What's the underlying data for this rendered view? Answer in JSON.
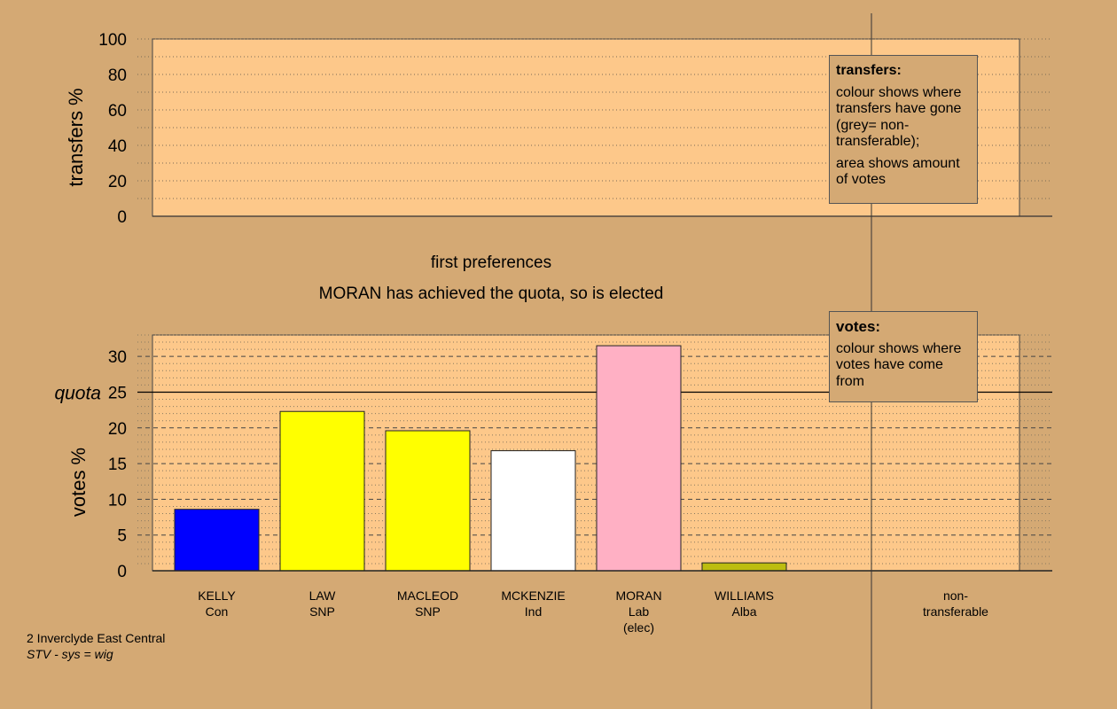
{
  "stage_title": "first preferences",
  "status_message": "MORAN has achieved the quota, so is elected",
  "legends": {
    "transfers": {
      "title": "transfers:",
      "line1": "colour shows where transfers have gone (grey= non-transferable);",
      "line2": "area shows amount of votes"
    },
    "votes": {
      "title": "votes:",
      "line1": "colour shows where votes have come from"
    }
  },
  "footer": {
    "ward": "2 Inverclyde East Central",
    "system": "STV - sys = wig"
  },
  "colors": {
    "background": "#d4a974",
    "plot_area": "#fdc88a",
    "Con": "#0000ff",
    "SNP": "#ffff00",
    "Ind": "#ffffff",
    "Lab": "#ffb0c4",
    "Alba": "#bdbd0f"
  },
  "chart_data": [
    {
      "type": "bar",
      "title": "",
      "ylabel": "transfers %",
      "ylim": [
        0,
        100
      ],
      "yticks": [
        0,
        20,
        40,
        60,
        80,
        100
      ],
      "categories": [],
      "values": [],
      "grid": "dotted"
    },
    {
      "type": "bar",
      "ylabel": "votes %",
      "ylim": [
        0,
        33
      ],
      "yticks": [
        0,
        5,
        10,
        15,
        20,
        25,
        30
      ],
      "quota": {
        "label": "quota",
        "value": 25
      },
      "grid": "dotted",
      "categories": [
        {
          "name": "KELLY",
          "party": "Con",
          "note": ""
        },
        {
          "name": "LAW",
          "party": "SNP",
          "note": ""
        },
        {
          "name": "MACLEOD",
          "party": "SNP",
          "note": ""
        },
        {
          "name": "MCKENZIE",
          "party": "Ind",
          "note": ""
        },
        {
          "name": "MORAN",
          "party": "Lab",
          "note": "(elec)"
        },
        {
          "name": "WILLIAMS",
          "party": "Alba",
          "note": ""
        }
      ],
      "values": [
        8.6,
        22.3,
        19.6,
        16.8,
        31.5,
        1.1
      ],
      "extra_category": {
        "line1": "non-",
        "line2": "transferable"
      }
    }
  ]
}
